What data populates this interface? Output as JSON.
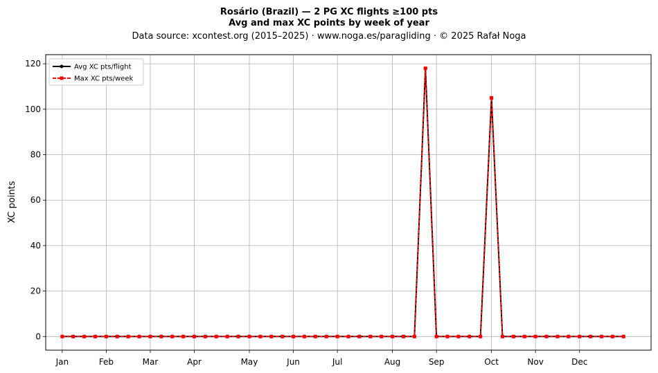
{
  "chart_data": {
    "type": "line",
    "title": "Rosário (Brazil)  —  2 PG XC flights ≥100 pts",
    "subtitle": "Avg and max XC points by week of year",
    "source": "Data source: xcontest.org (2015–2025)  ·  www.noga.es/paragliding  ·  © 2025 Rafał Noga",
    "xlabel": "",
    "ylabel": "XC points",
    "xlim": [
      -1.5,
      53.5
    ],
    "ylim": [
      -6,
      124
    ],
    "yticks": [
      0,
      20,
      40,
      60,
      80,
      100,
      120
    ],
    "xticks": [
      {
        "label": "Jan",
        "week": 0
      },
      {
        "label": "Feb",
        "week": 4
      },
      {
        "label": "Mar",
        "week": 8
      },
      {
        "label": "Apr",
        "week": 12
      },
      {
        "label": "May",
        "week": 17
      },
      {
        "label": "Jun",
        "week": 21
      },
      {
        "label": "Jul",
        "week": 25
      },
      {
        "label": "Aug",
        "week": 30
      },
      {
        "label": "Sep",
        "week": 34
      },
      {
        "label": "Oct",
        "week": 39
      },
      {
        "label": "Nov",
        "week": 43
      },
      {
        "label": "Dec",
        "week": 47
      }
    ],
    "grid": true,
    "legend_position": "top-left",
    "x": [
      0,
      1,
      2,
      3,
      4,
      5,
      6,
      7,
      8,
      9,
      10,
      11,
      12,
      13,
      14,
      15,
      16,
      17,
      18,
      19,
      20,
      21,
      22,
      23,
      24,
      25,
      26,
      27,
      28,
      29,
      30,
      31,
      32,
      33,
      34,
      35,
      36,
      37,
      38,
      39,
      40,
      41,
      42,
      43,
      44,
      45,
      46,
      47,
      48,
      49,
      50,
      51
    ],
    "series": [
      {
        "name": "Avg XC pts/flight",
        "color": "#000000",
        "values": [
          0,
          0,
          0,
          0,
          0,
          0,
          0,
          0,
          0,
          0,
          0,
          0,
          0,
          0,
          0,
          0,
          0,
          0,
          0,
          0,
          0,
          0,
          0,
          0,
          0,
          0,
          0,
          0,
          0,
          0,
          0,
          0,
          0,
          118,
          0,
          0,
          0,
          0,
          0,
          105,
          0,
          0,
          0,
          0,
          0,
          0,
          0,
          0,
          0,
          0,
          0,
          0
        ]
      },
      {
        "name": "Max XC pts/week",
        "color": "#ff0000",
        "values": [
          0,
          0,
          0,
          0,
          0,
          0,
          0,
          0,
          0,
          0,
          0,
          0,
          0,
          0,
          0,
          0,
          0,
          0,
          0,
          0,
          0,
          0,
          0,
          0,
          0,
          0,
          0,
          0,
          0,
          0,
          0,
          0,
          0,
          118,
          0,
          0,
          0,
          0,
          0,
          105,
          0,
          0,
          0,
          0,
          0,
          0,
          0,
          0,
          0,
          0,
          0,
          0
        ]
      }
    ]
  }
}
